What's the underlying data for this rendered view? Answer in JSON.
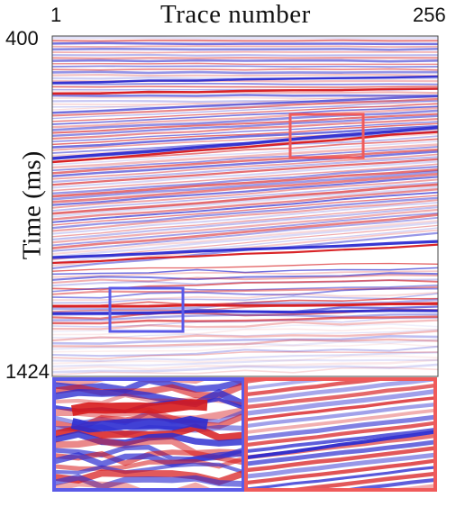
{
  "x_axis": {
    "title": "Trace number",
    "start_label": "1",
    "end_label": "256"
  },
  "y_axis": {
    "title": "Time (ms)",
    "start_label": "400",
    "end_label": "1424"
  },
  "colors": {
    "positive": "#d7191c",
    "negative": "#2c2cd0",
    "zero": "#ffffff",
    "highlight_red": "#f05a5a",
    "highlight_blue": "#5a5ae8"
  },
  "highlights": [
    {
      "name": "red-highlight-box",
      "color": "highlight_red",
      "description": "Red zoom region"
    },
    {
      "name": "blue-highlight-box",
      "color": "highlight_blue",
      "description": "Blue zoom region"
    }
  ]
}
